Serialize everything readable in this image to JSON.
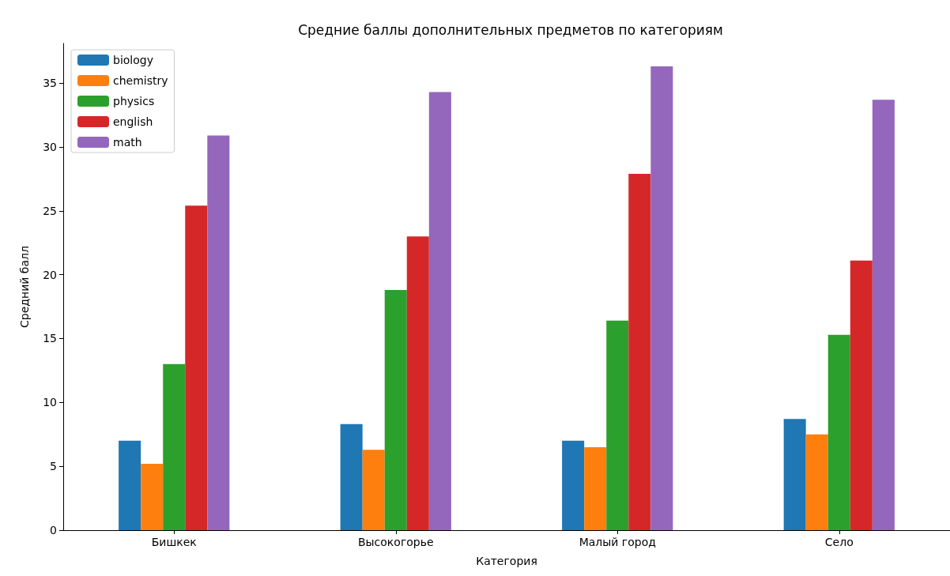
{
  "chart_data": {
    "type": "bar",
    "title": "Средние баллы дополнительных предметов по категориям",
    "xlabel": "Категория",
    "ylabel": "Средний балл",
    "categories": [
      "Бишкек",
      "Высокогорье",
      "Малый город",
      "Село"
    ],
    "series": [
      {
        "name": "biology",
        "color": "#1f77b4",
        "values": [
          7.0,
          8.3,
          7.0,
          8.7
        ]
      },
      {
        "name": "chemistry",
        "color": "#ff7f0e",
        "values": [
          5.2,
          6.3,
          6.5,
          7.5
        ]
      },
      {
        "name": "physics",
        "color": "#2ca02c",
        "values": [
          13.0,
          18.8,
          16.4,
          15.3
        ]
      },
      {
        "name": "english",
        "color": "#d62728",
        "values": [
          25.4,
          23.0,
          27.9,
          21.1
        ]
      },
      {
        "name": "math",
        "color": "#9467bd",
        "values": [
          30.9,
          34.3,
          36.3,
          33.7
        ]
      }
    ],
    "ylim": [
      0,
      38.1
    ],
    "yticks": [
      0,
      5,
      10,
      15,
      20,
      25,
      30,
      35
    ],
    "grid": false,
    "legend": "top left"
  }
}
